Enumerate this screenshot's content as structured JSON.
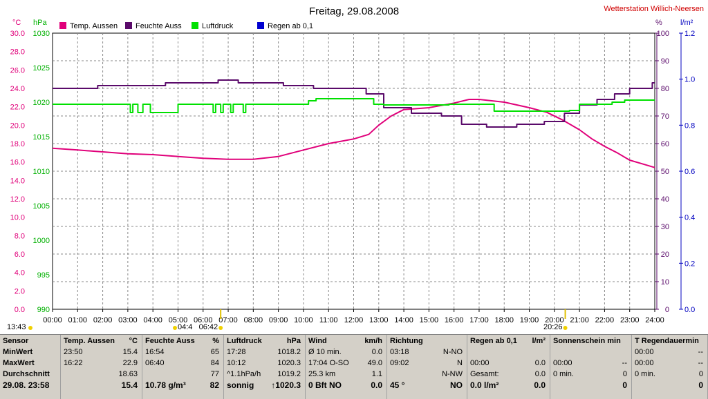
{
  "header": {
    "title": "Freitag, 29.08.2008",
    "station": "Wetterstation Willich-Neersen"
  },
  "chart_data": {
    "type": "line",
    "x_start": "00:00",
    "x_end": "24:00",
    "x_ticks": [
      "00:00",
      "01:00",
      "02:00",
      "03:00",
      "04:00",
      "05:00",
      "06:00",
      "07:00",
      "08:00",
      "09:00",
      "10:00",
      "11:00",
      "12:00",
      "13:00",
      "14:00",
      "15:00",
      "16:00",
      "17:00",
      "18:00",
      "19:00",
      "20:00",
      "21:00",
      "22:00",
      "23:00",
      "24:00"
    ],
    "grid": true,
    "axes": {
      "temp": {
        "unit": "°C",
        "min": 0,
        "max": 30,
        "ticks": [
          "0.0",
          "2.0",
          "4.0",
          "6.0",
          "8.0",
          "10.0",
          "12.0",
          "14.0",
          "16.0",
          "18.0",
          "20.0",
          "22.0",
          "24.0",
          "26.0",
          "28.0",
          "30.0"
        ],
        "color": "#e0007a"
      },
      "pressure": {
        "unit": "hPa",
        "min": 990,
        "max": 1030,
        "ticks": [
          "990",
          "995",
          "1000",
          "1005",
          "1010",
          "1015",
          "1020",
          "1025",
          "1030"
        ],
        "color": "#00b000"
      },
      "humidity": {
        "unit": "%",
        "min": 0,
        "max": 100,
        "ticks": [
          "0",
          "10",
          "20",
          "30",
          "40",
          "50",
          "60",
          "70",
          "80",
          "90",
          "100"
        ],
        "color": "#5a0a6a"
      },
      "rain": {
        "unit": "l/m²",
        "min": 0,
        "max": 1.2,
        "ticks": [
          "0.0",
          "0.2",
          "0.4",
          "0.6",
          "0.8",
          "1.0",
          "1.2"
        ],
        "color": "#0000c0"
      }
    },
    "series": [
      {
        "name": "Temp. Aussen",
        "axis": "temp",
        "color": "#e0007a",
        "step": false,
        "points": [
          [
            0,
            17.5
          ],
          [
            1,
            17.3
          ],
          [
            2,
            17.1
          ],
          [
            3,
            16.9
          ],
          [
            4,
            16.8
          ],
          [
            5,
            16.6
          ],
          [
            6,
            16.4
          ],
          [
            7,
            16.3
          ],
          [
            8,
            16.3
          ],
          [
            9,
            16.6
          ],
          [
            10,
            17.3
          ],
          [
            11,
            18.0
          ],
          [
            12,
            18.5
          ],
          [
            12.6,
            19.0
          ],
          [
            13,
            20.0
          ],
          [
            13.5,
            21.0
          ],
          [
            14,
            21.7
          ],
          [
            15,
            21.9
          ],
          [
            16,
            22.4
          ],
          [
            16.6,
            22.8
          ],
          [
            17,
            22.8
          ],
          [
            18,
            22.5
          ],
          [
            19,
            21.9
          ],
          [
            19.7,
            21.4
          ],
          [
            20.3,
            20.6
          ],
          [
            21,
            19.5
          ],
          [
            21.5,
            18.5
          ],
          [
            22,
            17.7
          ],
          [
            22.5,
            17.0
          ],
          [
            23,
            16.2
          ],
          [
            23.5,
            15.8
          ],
          [
            24,
            15.4
          ]
        ]
      },
      {
        "name": "Feuchte Auss",
        "axis": "humidity",
        "color": "#5a0a6a",
        "step": true,
        "points": [
          [
            0,
            80
          ],
          [
            1.8,
            81
          ],
          [
            4.5,
            82
          ],
          [
            6.6,
            83
          ],
          [
            7.4,
            82
          ],
          [
            9.2,
            81
          ],
          [
            10.4,
            80
          ],
          [
            12.5,
            78
          ],
          [
            13.2,
            73
          ],
          [
            14.3,
            71
          ],
          [
            15.5,
            70
          ],
          [
            16.3,
            67
          ],
          [
            17.3,
            66
          ],
          [
            18.5,
            67
          ],
          [
            19.6,
            68
          ],
          [
            20.4,
            71
          ],
          [
            21.0,
            74
          ],
          [
            21.7,
            76
          ],
          [
            22.4,
            78
          ],
          [
            23.0,
            80
          ],
          [
            23.9,
            82
          ]
        ]
      },
      {
        "name": "Luftdruck",
        "axis": "pressure",
        "color": "#00e000",
        "step": true,
        "points": [
          [
            0,
            1019.7
          ],
          [
            3.1,
            1018.5
          ],
          [
            3.2,
            1019.7
          ],
          [
            3.4,
            1018.5
          ],
          [
            3.6,
            1019.7
          ],
          [
            3.9,
            1018.5
          ],
          [
            4.9,
            1018.5
          ],
          [
            5.0,
            1019.7
          ],
          [
            6.4,
            1018.5
          ],
          [
            6.5,
            1019.7
          ],
          [
            6.7,
            1018.5
          ],
          [
            6.8,
            1019.7
          ],
          [
            7.1,
            1018.5
          ],
          [
            7.2,
            1019.7
          ],
          [
            7.6,
            1018.5
          ],
          [
            7.7,
            1019.7
          ],
          [
            10.2,
            1020.2
          ],
          [
            10.5,
            1020.5
          ],
          [
            12.8,
            1019.7
          ],
          [
            13.2,
            1019.6
          ],
          [
            15.8,
            1019.7
          ],
          [
            17.6,
            1018.7
          ],
          [
            20.2,
            1018.7
          ],
          [
            20.6,
            1018.8
          ],
          [
            21.0,
            1019.7
          ],
          [
            22.3,
            1020.0
          ],
          [
            22.8,
            1020.3
          ],
          [
            24,
            1020.3
          ]
        ]
      }
    ],
    "legend": [
      {
        "name": "Temp. Aussen",
        "color": "#e0007a"
      },
      {
        "name": "Feuchte Auss",
        "color": "#5a0a6a"
      },
      {
        "name": "Luftdruck",
        "color": "#00e000"
      },
      {
        "name": "Regen ab 0,1",
        "color": "#0000d0"
      }
    ],
    "sun_markers": {
      "sunrise_time": "06:42",
      "sunset_time": "20:26",
      "daylength": "13:43",
      "extra_label": "04:4"
    }
  },
  "table": {
    "columns": [
      {
        "header": [
          "Sensor",
          ""
        ],
        "rows": [
          [
            "MinWert",
            ""
          ],
          [
            "MaxWert",
            ""
          ],
          [
            "Durchschnitt",
            ""
          ],
          [
            "29.08. 23:58",
            ""
          ]
        ]
      },
      {
        "header": [
          "Temp. Aussen",
          "°C"
        ],
        "rows": [
          [
            "23:50",
            "15.4"
          ],
          [
            "16:22",
            "22.9"
          ],
          [
            "",
            "18.63"
          ],
          [
            "",
            "15.4"
          ]
        ]
      },
      {
        "header": [
          "Feuchte Auss",
          "%"
        ],
        "rows": [
          [
            "16:54",
            "65"
          ],
          [
            "06:40",
            "84"
          ],
          [
            "",
            "77"
          ],
          [
            "10.78 g/m³",
            "82"
          ]
        ]
      },
      {
        "header": [
          "Luftdruck",
          "hPa"
        ],
        "rows": [
          [
            "17:28",
            "1018.2"
          ],
          [
            "10:12",
            "1020.3"
          ],
          [
            "^1.1hPa/h",
            "1019.2"
          ],
          [
            "sonnig",
            "↑1020.3"
          ]
        ]
      },
      {
        "header": [
          "Wind",
          "km/h"
        ],
        "rows": [
          [
            "Ø 10 min.",
            "0.0"
          ],
          [
            "17:04  O-SO",
            "49.0"
          ],
          [
            "25.3 km",
            "1.1"
          ],
          [
            "0 Bft NO",
            "0.0"
          ]
        ]
      },
      {
        "header": [
          "Richtung",
          ""
        ],
        "rows": [
          [
            "03:18",
            "N-NO"
          ],
          [
            "09:02",
            "N"
          ],
          [
            "",
            "N-NW"
          ],
          [
            "45 °",
            "NO"
          ]
        ]
      },
      {
        "header": [
          "Regen ab 0,1",
          "l/m²"
        ],
        "rows": [
          [
            "",
            ""
          ],
          [
            "00:00",
            "0.0"
          ],
          [
            "Gesamt:",
            "0.0"
          ],
          [
            "0.0 l/m²",
            "0.0"
          ]
        ]
      },
      {
        "header": [
          "Sonnenschein min",
          ""
        ],
        "rows": [
          [
            "",
            ""
          ],
          [
            "00:00",
            "--"
          ],
          [
            "0 min.",
            "0"
          ],
          [
            "",
            "0"
          ]
        ]
      },
      {
        "header": [
          "T Regendauermin",
          ""
        ],
        "rows": [
          [
            "00:00",
            "--"
          ],
          [
            "00:00",
            "--"
          ],
          [
            "0 min.",
            "0"
          ],
          [
            "",
            "0"
          ]
        ]
      }
    ]
  }
}
